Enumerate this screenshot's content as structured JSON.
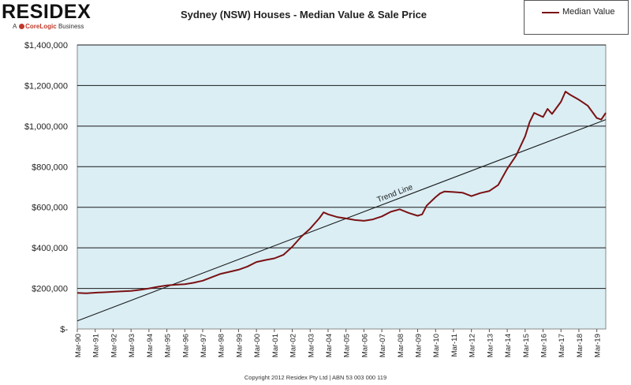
{
  "brand": {
    "name": "RESIDEX",
    "sub_prefix": "A",
    "sub_company": "CoreLogic",
    "sub_suffix": "Business"
  },
  "copyright": "Copyright 2012 Residex Pty Ltd | ABN 53 003 000 119",
  "chart_data": {
    "type": "line",
    "title": "Sydney (NSW) Houses - Median Value & Sale Price",
    "xlabel": "",
    "ylabel": "",
    "ylim": [
      0,
      1400000
    ],
    "yticks": [
      {
        "value": 0,
        "label": "$-"
      },
      {
        "value": 200000,
        "label": "$200,000"
      },
      {
        "value": 400000,
        "label": "$400,000"
      },
      {
        "value": 600000,
        "label": "$600,000"
      },
      {
        "value": 800000,
        "label": "$800,000"
      },
      {
        "value": 1000000,
        "label": "$1,000,000"
      },
      {
        "value": 1200000,
        "label": "$1,200,000"
      },
      {
        "value": 1400000,
        "label": "$1,400,000"
      }
    ],
    "xlim": [
      1990.0,
      2019.5
    ],
    "xticks": [
      "Mar-90",
      "Mar-91",
      "Mar-92",
      "Mar-93",
      "Mar-94",
      "Mar-95",
      "Mar-96",
      "Mar-97",
      "Mar-98",
      "Mar-99",
      "Mar-00",
      "Mar-01",
      "Mar-02",
      "Mar-03",
      "Mar-04",
      "Mar-05",
      "Mar-06",
      "Mar-07",
      "Mar-08",
      "Mar-09",
      "Mar-10",
      "Mar-11",
      "Mar-12",
      "Mar-13",
      "Mar-14",
      "Mar-15",
      "Mar-16",
      "Mar-17",
      "Mar-18",
      "Mar-19"
    ],
    "grid": "horizontal",
    "legend_position": "top-right",
    "colors": {
      "series": "#7b1113",
      "plot_bg": "#daeef4",
      "trend": "#1a1a1a"
    },
    "series": [
      {
        "name": "Median Value",
        "x": [
          1990.0,
          1990.5,
          1991.0,
          1991.5,
          1992.0,
          1992.5,
          1993.0,
          1993.5,
          1994.0,
          1994.5,
          1995.0,
          1995.5,
          1996.0,
          1996.5,
          1997.0,
          1997.5,
          1998.0,
          1998.5,
          1999.0,
          1999.5,
          2000.0,
          2000.5,
          2001.0,
          2001.5,
          2002.0,
          2002.5,
          2003.0,
          2003.5,
          2003.75,
          2004.0,
          2004.5,
          2005.0,
          2005.5,
          2006.0,
          2006.5,
          2007.0,
          2007.5,
          2008.0,
          2008.5,
          2009.0,
          2009.25,
          2009.5,
          2010.0,
          2010.25,
          2010.5,
          2011.0,
          2011.5,
          2012.0,
          2012.5,
          2013.0,
          2013.5,
          2014.0,
          2014.5,
          2015.0,
          2015.25,
          2015.5,
          2016.0,
          2016.25,
          2016.5,
          2017.0,
          2017.25,
          2017.5,
          2018.0,
          2018.5,
          2019.0,
          2019.25,
          2019.5
        ],
        "y": [
          178000,
          176000,
          179000,
          181000,
          183000,
          186000,
          188000,
          193000,
          200000,
          208000,
          215000,
          218000,
          221000,
          228000,
          238000,
          255000,
          272000,
          282000,
          292000,
          308000,
          330000,
          340000,
          348000,
          365000,
          405000,
          455000,
          495000,
          545000,
          575000,
          565000,
          552000,
          545000,
          537000,
          533000,
          540000,
          555000,
          578000,
          590000,
          572000,
          558000,
          565000,
          608000,
          650000,
          668000,
          678000,
          675000,
          672000,
          655000,
          670000,
          680000,
          710000,
          790000,
          855000,
          950000,
          1020000,
          1065000,
          1045000,
          1085000,
          1060000,
          1120000,
          1170000,
          1155000,
          1130000,
          1100000,
          1040000,
          1032000,
          1065000
        ]
      }
    ],
    "trend_line": {
      "label": "Trend Line",
      "x": [
        1990.0,
        2019.5
      ],
      "y": [
        40000,
        1032000
      ]
    }
  }
}
